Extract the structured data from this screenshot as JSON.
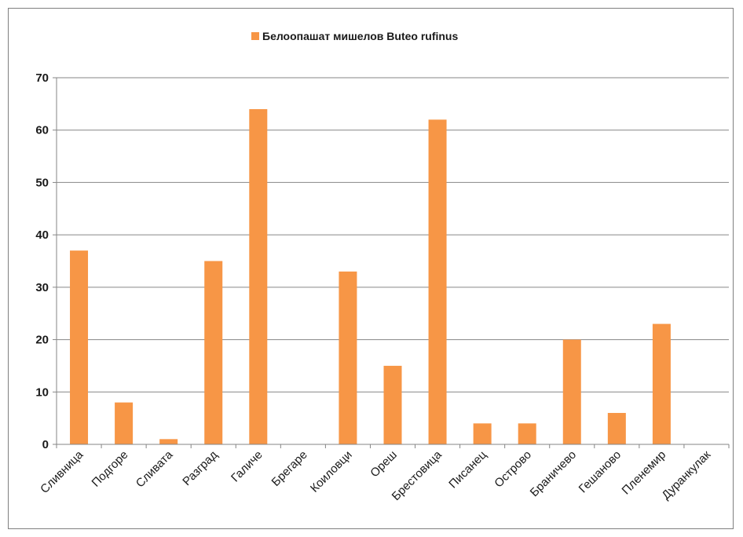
{
  "chart_data": {
    "type": "bar",
    "title": "",
    "xlabel": "",
    "ylabel": "",
    "ylim": [
      0,
      70
    ],
    "yticks": [
      0,
      10,
      20,
      30,
      40,
      50,
      60,
      70
    ],
    "grid": true,
    "legend_position": "top-center",
    "categories": [
      "Сливница",
      "Подгоре",
      "Сливата",
      "Разград",
      "Галиче",
      "Брегаре",
      "Коиловци",
      "Ореш",
      "Брестовица",
      "Писанец",
      "Острово",
      "Браничево",
      "Гешаново",
      "Пленемир",
      "Дуранкулак"
    ],
    "series": [
      {
        "name": "Белоопашат мишелов Buteo rufinus",
        "color": "#f79646",
        "values": [
          37,
          8,
          1,
          35,
          64,
          0,
          33,
          15,
          62,
          4,
          4,
          20,
          6,
          23,
          0
        ]
      }
    ]
  }
}
